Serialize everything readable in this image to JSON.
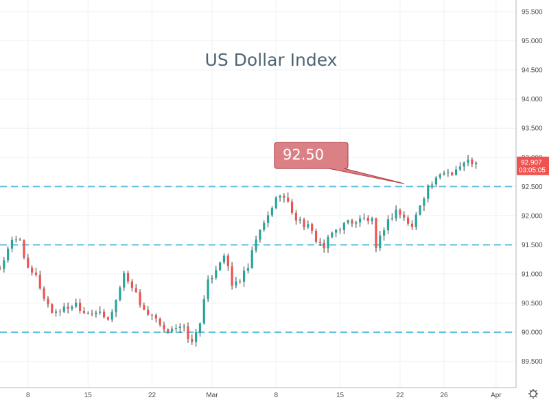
{
  "chart_data": {
    "type": "candlestick",
    "title": "US Dollar Index",
    "y_axis": {
      "ylim": [
        89.05,
        95.7
      ],
      "ticks": [
        "89.500",
        "90.000",
        "90.500",
        "91.000",
        "91.500",
        "92.000",
        "92.500",
        "93.000",
        "93.500",
        "94.000",
        "94.500",
        "95.000",
        "95.500"
      ],
      "tick_values": [
        89.5,
        90.0,
        90.5,
        91.0,
        91.5,
        92.0,
        92.5,
        93.0,
        93.5,
        94.0,
        94.5,
        95.0,
        95.5
      ]
    },
    "x_axis": {
      "ticks": [
        "8",
        "15",
        "22",
        "Mar",
        "8",
        "15",
        "22",
        "26",
        "Apr"
      ],
      "tick_bars": [
        7,
        22,
        38,
        53,
        69,
        85,
        100,
        111,
        124
      ]
    },
    "x_bar_range": [
      0,
      129
    ],
    "grid": true,
    "support_resistance_lines": [
      92.5,
      91.5,
      90.0
    ],
    "line_color": "#5bc0de",
    "colors": {
      "up": "#26a69a",
      "down": "#ef5350",
      "wick": "#333333"
    },
    "annotation": {
      "text": "92.50",
      "target_bar": 101,
      "target_value": 92.55
    },
    "last_price": {
      "label": "92.907",
      "countdown": "03:05:05",
      "color": "#ef5350"
    },
    "close_path": [
      [
        0,
        91.1
      ],
      [
        3,
        91.55
      ],
      [
        5,
        91.6
      ],
      [
        7,
        91.05
      ],
      [
        9,
        90.95
      ],
      [
        11,
        90.6
      ],
      [
        13,
        90.35
      ],
      [
        16,
        90.4
      ],
      [
        19,
        90.5
      ],
      [
        21,
        90.35
      ],
      [
        24,
        90.35
      ],
      [
        27,
        90.2
      ],
      [
        29,
        90.55
      ],
      [
        31,
        91.0
      ],
      [
        33,
        90.8
      ],
      [
        35,
        90.5
      ],
      [
        37,
        90.3
      ],
      [
        39,
        90.2
      ],
      [
        41,
        90.0
      ],
      [
        43,
        90.1
      ],
      [
        46,
        90.05
      ],
      [
        48,
        89.8
      ],
      [
        50,
        90.2
      ],
      [
        52,
        90.85
      ],
      [
        54,
        91.1
      ],
      [
        56,
        91.35
      ],
      [
        58,
        90.8
      ],
      [
        60,
        90.9
      ],
      [
        62,
        91.1
      ],
      [
        64,
        91.6
      ],
      [
        66,
        91.85
      ],
      [
        68,
        92.15
      ],
      [
        70,
        92.4
      ],
      [
        72,
        92.2
      ],
      [
        74,
        91.95
      ],
      [
        77,
        91.8
      ],
      [
        79,
        91.6
      ],
      [
        81,
        91.45
      ],
      [
        83,
        91.7
      ],
      [
        85,
        91.8
      ],
      [
        87,
        91.9
      ],
      [
        89,
        91.9
      ],
      [
        91,
        91.95
      ],
      [
        93,
        91.9
      ],
      [
        94,
        91.4
      ],
      [
        95,
        91.6
      ],
      [
        96,
        91.8
      ],
      [
        98,
        92.0
      ],
      [
        99,
        92.1
      ],
      [
        101,
        91.95
      ],
      [
        103,
        91.8
      ],
      [
        105,
        92.2
      ],
      [
        107,
        92.5
      ],
      [
        109,
        92.6
      ],
      [
        111,
        92.75
      ],
      [
        113,
        92.75
      ],
      [
        115,
        92.85
      ],
      [
        117,
        92.93
      ],
      [
        119,
        92.907
      ]
    ]
  }
}
